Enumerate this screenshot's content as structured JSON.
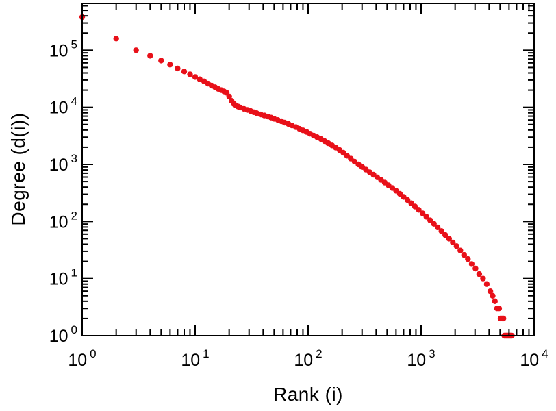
{
  "figure": {
    "background": "#ffffff",
    "frame_color": "#000000",
    "text_color": "#000000"
  },
  "chart_data": {
    "type": "scatter",
    "title": "",
    "xlabel": "Rank (i)",
    "ylabel": "Degree (d(i))",
    "x_scale": "log",
    "y_scale": "log",
    "x_range_exp": [
      0,
      4
    ],
    "y_range_exp": [
      0,
      5.82
    ],
    "x_major_ticks_exp": [
      0,
      1,
      2,
      3,
      4
    ],
    "y_major_ticks_exp": [
      0,
      1,
      2,
      3,
      4,
      5
    ],
    "tick_label_base": "10",
    "grid": false,
    "legend": "none",
    "marker": {
      "shape": "circle",
      "color": "#e81019",
      "radius": 4.2
    },
    "points": [
      [
        1,
        380000
      ],
      [
        2,
        160000
      ],
      [
        3,
        100000
      ],
      [
        4,
        80000
      ],
      [
        5,
        66000
      ],
      [
        6,
        56000
      ],
      [
        7,
        48000
      ],
      [
        8,
        42500
      ],
      [
        9,
        38000
      ],
      [
        10,
        34000
      ],
      [
        11,
        31000
      ],
      [
        12,
        28500
      ],
      [
        13,
        26000
      ],
      [
        14,
        24000
      ],
      [
        15,
        22500
      ],
      [
        16,
        21000
      ],
      [
        17,
        20000
      ],
      [
        18,
        19000
      ],
      [
        19,
        18000
      ],
      [
        20,
        15500
      ],
      [
        21,
        13000
      ],
      [
        22,
        11500
      ],
      [
        23,
        10800
      ],
      [
        24,
        10300
      ],
      [
        25,
        9900
      ],
      [
        27,
        9400
      ],
      [
        29,
        9000
      ],
      [
        31,
        8600
      ],
      [
        33,
        8200
      ],
      [
        35,
        7900
      ],
      [
        38,
        7500
      ],
      [
        41,
        7200
      ],
      [
        44,
        6900
      ],
      [
        47,
        6600
      ],
      [
        50,
        6300
      ],
      [
        54,
        6000
      ],
      [
        58,
        5700
      ],
      [
        62,
        5400
      ],
      [
        67,
        5100
      ],
      [
        72,
        4800
      ],
      [
        78,
        4500
      ],
      [
        84,
        4200
      ],
      [
        90,
        3950
      ],
      [
        97,
        3700
      ],
      [
        104,
        3450
      ],
      [
        112,
        3200
      ],
      [
        120,
        3000
      ],
      [
        130,
        2780
      ],
      [
        140,
        2560
      ],
      [
        151,
        2350
      ],
      [
        163,
        2150
      ],
      [
        176,
        1960
      ],
      [
        190,
        1780
      ],
      [
        205,
        1600
      ],
      [
        221,
        1420
      ],
      [
        239,
        1260
      ],
      [
        258,
        1120
      ],
      [
        279,
        1000
      ],
      [
        301,
        900
      ],
      [
        325,
        810
      ],
      [
        351,
        730
      ],
      [
        379,
        660
      ],
      [
        409,
        595
      ],
      [
        442,
        535
      ],
      [
        477,
        480
      ],
      [
        515,
        430
      ],
      [
        556,
        385
      ],
      [
        601,
        345
      ],
      [
        649,
        305
      ],
      [
        701,
        270
      ],
      [
        757,
        238
      ],
      [
        818,
        209
      ],
      [
        883,
        183
      ],
      [
        954,
        160
      ],
      [
        1030,
        139
      ],
      [
        1113,
        121
      ],
      [
        1202,
        105
      ],
      [
        1298,
        91
      ],
      [
        1402,
        79
      ],
      [
        1514,
        68
      ],
      [
        1635,
        58
      ],
      [
        1766,
        50
      ],
      [
        1907,
        43
      ],
      [
        2060,
        37
      ],
      [
        2225,
        31
      ],
      [
        2403,
        26
      ],
      [
        2595,
        22
      ],
      [
        2803,
        18
      ],
      [
        3027,
        15
      ],
      [
        3269,
        12
      ],
      [
        3531,
        10
      ],
      [
        3813,
        8
      ],
      [
        4100,
        6
      ],
      [
        4300,
        5
      ],
      [
        4500,
        4
      ],
      [
        4700,
        3
      ],
      [
        4900,
        3
      ],
      [
        5050,
        2
      ],
      [
        5200,
        2
      ],
      [
        5350,
        2
      ],
      [
        5450,
        1
      ],
      [
        5550,
        1
      ],
      [
        5650,
        1
      ],
      [
        5750,
        1
      ],
      [
        5850,
        1
      ],
      [
        5950,
        1
      ],
      [
        6050,
        1
      ],
      [
        6150,
        1
      ],
      [
        6250,
        1
      ],
      [
        6350,
        1
      ]
    ]
  }
}
